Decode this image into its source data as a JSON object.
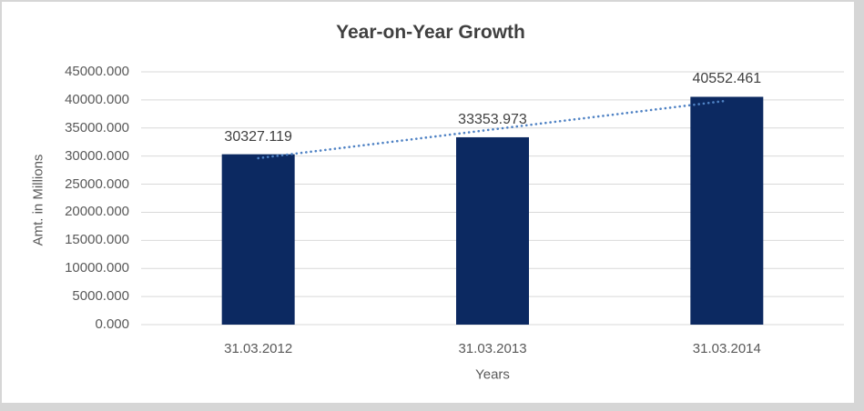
{
  "window": {
    "frame_color": "#d6d6d6",
    "chart_background": "#ffffff"
  },
  "chart_data": {
    "type": "bar",
    "title": "Year-on-Year Growth",
    "xlabel": "Years",
    "ylabel": "Amt. in Millions",
    "categories": [
      "31.03.2012",
      "31.03.2013",
      "31.03.2014"
    ],
    "values": [
      30327.119,
      33353.973,
      40552.461
    ],
    "data_labels": [
      "30327.119",
      "33353.973",
      "40552.461"
    ],
    "ylim": [
      0,
      45000
    ],
    "ytick_step": 5000,
    "ytick_labels": [
      "0.000",
      "5000.000",
      "10000.000",
      "15000.000",
      "20000.000",
      "25000.000",
      "30000.000",
      "35000.000",
      "40000.000",
      "45000.000"
    ],
    "grid": true,
    "legend": "none",
    "trendline": {
      "fit": "linear",
      "style": "dotted"
    },
    "colors": {
      "bar": "#0c2961",
      "trendline": "#4f82c4",
      "gridline": "#d9d9d9",
      "axis_text": "#595959",
      "title_text": "#404040",
      "data_label_text": "#404040"
    }
  }
}
